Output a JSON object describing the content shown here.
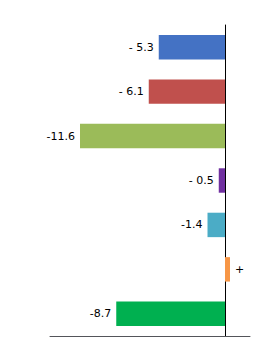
{
  "chart_data": {
    "type": "bar",
    "orientation": "horizontal",
    "categories": [
      null,
      null,
      null,
      null,
      null,
      null,
      null
    ],
    "values": [
      -5.3,
      -6.1,
      -11.6,
      -0.5,
      -1.4,
      0.4,
      -8.7
    ],
    "value_labels": [
      "- 5.3",
      "- 6.1",
      "-11.6",
      "- 0.5",
      "-1.4",
      "+",
      "-8.7"
    ],
    "data_labels": true,
    "colors": [
      "#4472C4",
      "#C0504D",
      "#9BBB59",
      "#7030A0",
      "#4BACC6",
      "#F79646",
      "#00B050"
    ],
    "xlim": [
      -14,
      2
    ],
    "tick_labels": false,
    "grid": false
  }
}
